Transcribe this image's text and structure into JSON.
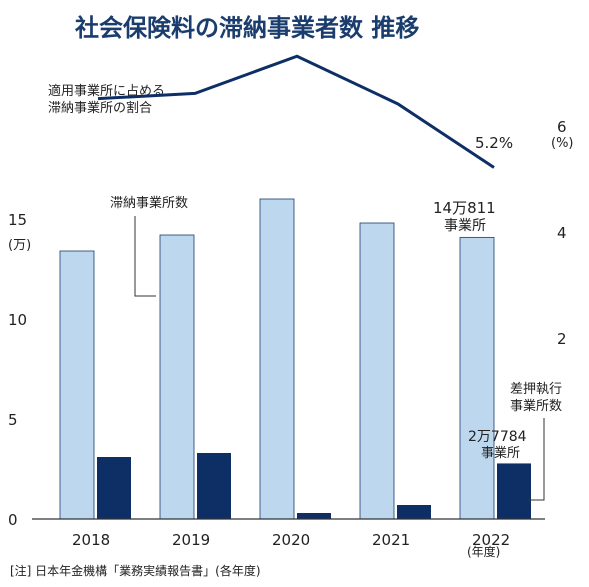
{
  "chart_data": {
    "type": "bar",
    "title": "社会保険料の滞納事業者数 推移",
    "categories": [
      "2018",
      "2019",
      "2020",
      "2021",
      "2022"
    ],
    "x_unit": "(年度)",
    "series": [
      {
        "name": "滞納事業所数",
        "axis": "left",
        "color": "#bdd7ee",
        "values": [
          13.4,
          14.2,
          16.0,
          14.8,
          14.0811
        ]
      },
      {
        "name": "差押執行事業所数",
        "axis": "left",
        "color": "#0d2f66",
        "values": [
          3.1,
          3.3,
          0.3,
          0.7,
          2.7784
        ]
      }
    ],
    "line": {
      "name": "適用事業所に占める滞納事業所の割合",
      "axis": "right",
      "color": "#0d2f66",
      "values": [
        6.5,
        6.6,
        7.3,
        6.4,
        5.2
      ]
    },
    "y_left": {
      "ticks": [
        "0",
        "5",
        "10",
        "15"
      ],
      "tick_values": [
        0,
        5,
        10,
        15
      ],
      "unit": "(万)",
      "ylim": [
        0,
        16
      ]
    },
    "y_right": {
      "ticks": [
        "2",
        "4",
        "6"
      ],
      "tick_values": [
        2,
        4,
        6
      ],
      "unit": "(%)"
    },
    "annotations": {
      "line_label_1": "適用事業所に占める",
      "line_label_2": "滞納事業所の割合",
      "line_end_value": "5.2%",
      "bar1_label": "滞納事業所数",
      "bar1_end_1": "14万811",
      "bar1_end_2": "事業所",
      "bar2_label_1": "差押執行",
      "bar2_label_2": "事業所数",
      "bar2_end_1": "2万7784",
      "bar2_end_2": "事業所"
    },
    "note": "[注] 日本年金機構「業務実績報告書」(各年度)"
  }
}
